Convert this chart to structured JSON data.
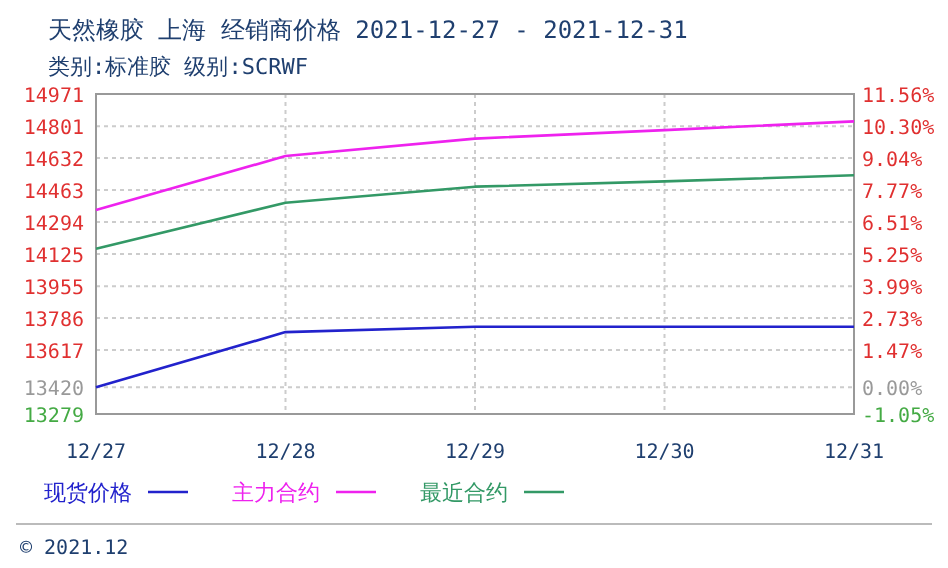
{
  "chart_data": {
    "type": "line",
    "title": "天然橡胶 上海 经销商价格 2021-12-27 - 2021-12-31",
    "subtitle": "类别:标准胶 级别:SCRWF",
    "categories": [
      "12/27",
      "12/28",
      "12/29",
      "12/30",
      "12/31"
    ],
    "series": [
      {
        "name": "现货价格",
        "color": "#2222cc",
        "values": [
          13420,
          13712,
          13740,
          13740,
          13740
        ]
      },
      {
        "name": "主力合约",
        "color": "#ee22ee",
        "values": [
          14357,
          14643,
          14735,
          14780,
          14826
        ]
      },
      {
        "name": "最近合约",
        "color": "#339966",
        "values": [
          14153,
          14396,
          14481,
          14509,
          14541
        ]
      }
    ],
    "ylim": [
      13279,
      14971
    ],
    "yticks": [
      13279,
      13420,
      13617,
      13786,
      13955,
      14125,
      14294,
      14463,
      14632,
      14801,
      14971
    ],
    "y2lim": [
      -1.05,
      11.56
    ],
    "y2ticks": [
      {
        "value": -1.05,
        "label": "-1.05%"
      },
      {
        "value": 0,
        "label": "0.00%"
      },
      {
        "value": 1.47,
        "label": "1.47%"
      },
      {
        "value": 2.73,
        "label": "2.73%"
      },
      {
        "value": 3.99,
        "label": "3.99%"
      },
      {
        "value": 5.25,
        "label": "5.25%"
      },
      {
        "value": 6.51,
        "label": "6.51%"
      },
      {
        "value": 7.77,
        "label": "7.77%"
      },
      {
        "value": 9.04,
        "label": "9.04%"
      },
      {
        "value": 10.3,
        "label": "10.30%"
      },
      {
        "value": 11.56,
        "label": "11.56%"
      }
    ],
    "grid": true,
    "legend": "bottom",
    "marker": "none",
    "line_style": "solid",
    "annotations": [
      "© 2021.12"
    ]
  }
}
